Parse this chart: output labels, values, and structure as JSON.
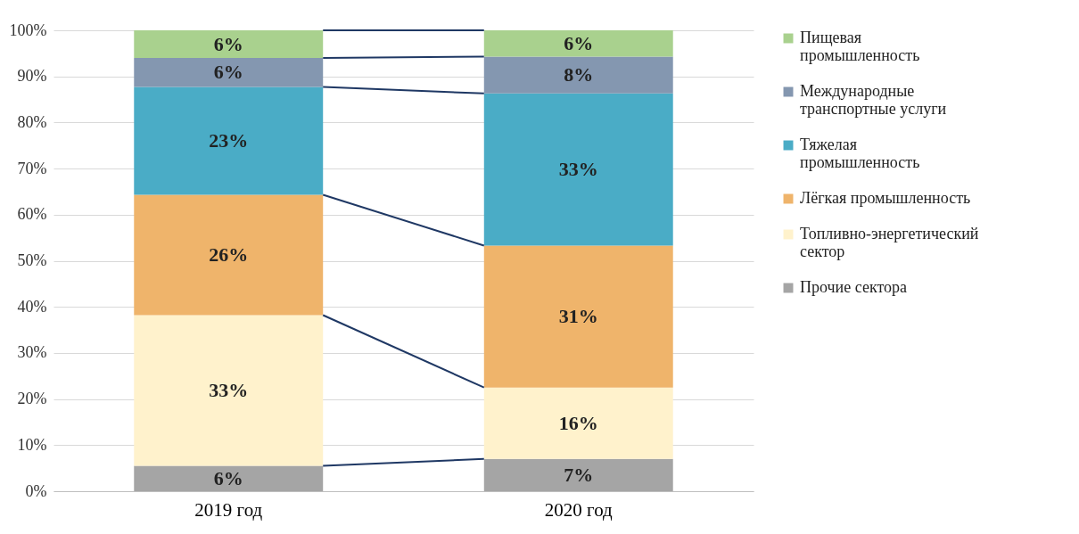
{
  "chart_data": {
    "type": "bar",
    "stacked": true,
    "categories": [
      "2019 год",
      "2020 год"
    ],
    "series": [
      {
        "name": "Прочие сектора",
        "color": "#a5a5a5",
        "values": [
          5.5,
          7
        ],
        "value_labels": [
          "6%",
          "7%"
        ]
      },
      {
        "name": "Топливно-энергетический сектор",
        "color": "#fff2cc",
        "values": [
          32.7,
          15.5
        ],
        "value_labels": [
          "33%",
          "16%"
        ]
      },
      {
        "name": "Лёгкая промышленность",
        "color": "#efb46b",
        "values": [
          26.1,
          30.8
        ],
        "value_labels": [
          "26%",
          "31%"
        ]
      },
      {
        "name": "Тяжелая промышленность",
        "color": "#4aacc6",
        "values": [
          23.4,
          33
        ],
        "value_labels": [
          "23%",
          "33%"
        ]
      },
      {
        "name": "Международные транспортные услуги",
        "color": "#8497b0",
        "values": [
          6.3,
          8
        ],
        "value_labels": [
          "6%",
          "8%"
        ]
      },
      {
        "name": "Пищевая промышленность",
        "color": "#a9d18e",
        "values": [
          6,
          5.7
        ],
        "value_labels": [
          "6%",
          "6%"
        ]
      }
    ],
    "ylim": [
      0,
      100
    ],
    "yticks": [
      {
        "value": 0,
        "label": "0%"
      },
      {
        "value": 10,
        "label": "10%"
      },
      {
        "value": 20,
        "label": "20%"
      },
      {
        "value": 30,
        "label": "30%"
      },
      {
        "value": 40,
        "label": "40%"
      },
      {
        "value": 50,
        "label": "50%"
      },
      {
        "value": 60,
        "label": "60%"
      },
      {
        "value": 70,
        "label": "70%"
      },
      {
        "value": 80,
        "label": "80%"
      },
      {
        "value": 90,
        "label": "90%"
      },
      {
        "value": 100,
        "label": "100%"
      }
    ],
    "grid": "y",
    "legend": "right"
  }
}
